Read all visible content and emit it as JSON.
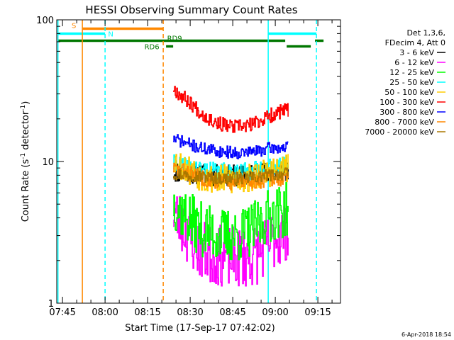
{
  "chart_data": {
    "type": "line",
    "title": "HESSI Observing Summary Count Rates",
    "xlabel": "Start Time (17-Sep-17 07:42:02)",
    "ylabel": "Count Rate (s",
    "ylabel_sup": "-1",
    "ylabel_tail": " detector",
    "ylabel_close": ")",
    "yscale": "log",
    "ylim": [
      1,
      100
    ],
    "xlim_minutes": [
      -2.03,
      97.98
    ],
    "x_ticks": [
      {
        "m": 0,
        "label": "07:45"
      },
      {
        "m": 15,
        "label": "08:00"
      },
      {
        "m": 30,
        "label": "08:15"
      },
      {
        "m": 45,
        "label": "08:30"
      },
      {
        "m": 60,
        "label": "08:45"
      },
      {
        "m": 75,
        "label": "09:00"
      },
      {
        "m": 90,
        "label": "09:15"
      }
    ],
    "y_ticks": [
      {
        "v": 1,
        "label": "1"
      },
      {
        "v": 10,
        "label": "10"
      },
      {
        "v": 100,
        "label": "100"
      }
    ],
    "legend": {
      "header": [
        "Det 1,3,6,",
        "FDecim 4, Att 0"
      ],
      "placement": "right"
    },
    "series": [
      {
        "name": "3 - 6 keV",
        "color": "#000000",
        "t0": 39,
        "t1": 79.5,
        "points": [
          [
            39,
            8.5
          ],
          [
            45,
            8.3
          ],
          [
            55,
            7.9
          ],
          [
            65,
            8.0
          ],
          [
            73,
            8.4
          ],
          [
            79.5,
            8.6
          ]
        ],
        "spread": 0.18,
        "seed": 11
      },
      {
        "name": "6 - 12 keV",
        "color": "#ff00ff",
        "t0": 39,
        "t1": 79.5,
        "points": [
          [
            39,
            4.5
          ],
          [
            43,
            3.3
          ],
          [
            47,
            2.5
          ],
          [
            52,
            2.2
          ],
          [
            60,
            2.1
          ],
          [
            66,
            2.1
          ],
          [
            71,
            2.4
          ],
          [
            75,
            2.9
          ],
          [
            79.5,
            3.3
          ]
        ],
        "spread": 0.5,
        "seed": 23
      },
      {
        "name": "12 - 25 keV",
        "color": "#00ff00",
        "t0": 39,
        "t1": 79.5,
        "points": [
          [
            39,
            5.2
          ],
          [
            43,
            4.2
          ],
          [
            48,
            3.4
          ],
          [
            55,
            3.0
          ],
          [
            62,
            3.0
          ],
          [
            68,
            3.4
          ],
          [
            73,
            4.2
          ],
          [
            79.5,
            4.6
          ]
        ],
        "spread": 0.45,
        "seed": 37
      },
      {
        "name": "25 - 50 keV",
        "color": "#00ffff",
        "t0": 39,
        "t1": 79.5,
        "points": [
          [
            39,
            9.6
          ],
          [
            45,
            9.0
          ],
          [
            55,
            8.4
          ],
          [
            65,
            8.5
          ],
          [
            73,
            9.0
          ],
          [
            79.5,
            9.4
          ]
        ],
        "spread": 0.15,
        "seed": 41
      },
      {
        "name": "50 - 100 keV",
        "color": "#ffcc00",
        "t0": 39,
        "t1": 79.5,
        "points": [
          [
            39,
            10.5
          ],
          [
            43,
            9.0
          ],
          [
            50,
            7.7
          ],
          [
            58,
            7.4
          ],
          [
            66,
            7.6
          ],
          [
            72,
            8.4
          ],
          [
            79.5,
            8.9
          ]
        ],
        "spread": 0.25,
        "seed": 53
      },
      {
        "name": "100 - 300 keV",
        "color": "#ff0000",
        "t0": 39,
        "t1": 79.5,
        "points": [
          [
            39,
            33
          ],
          [
            42,
            29
          ],
          [
            45,
            26
          ],
          [
            50,
            21
          ],
          [
            55,
            18.5
          ],
          [
            60,
            17.5
          ],
          [
            66,
            18
          ],
          [
            71,
            20
          ],
          [
            75,
            22
          ],
          [
            79.5,
            23
          ]
        ],
        "spread": 0.12,
        "seed": 67
      },
      {
        "name": "300 - 800 keV",
        "color": "#0000ff",
        "t0": 39,
        "t1": 79.5,
        "points": [
          [
            39,
            14.5
          ],
          [
            43,
            13.6
          ],
          [
            48,
            12.5
          ],
          [
            55,
            11.8
          ],
          [
            62,
            11.5
          ],
          [
            68,
            11.8
          ],
          [
            73,
            12.4
          ],
          [
            79.5,
            12.6
          ]
        ],
        "spread": 0.1,
        "seed": 71
      },
      {
        "name": "800 - 7000 keV",
        "color": "#ff8800",
        "t0": 39,
        "t1": 79.5,
        "points": [
          [
            39,
            9.0
          ],
          [
            43,
            8.5
          ],
          [
            48,
            7.8
          ],
          [
            55,
            7.2
          ],
          [
            62,
            7.0
          ],
          [
            68,
            7.2
          ],
          [
            73,
            7.6
          ],
          [
            79.5,
            7.5
          ]
        ],
        "spread": 0.13,
        "seed": 83
      },
      {
        "name": "7000 - 20000 keV",
        "color": "#aa7700",
        "t0": 39,
        "t1": 79.5,
        "points": [
          [
            39,
            8.2
          ],
          [
            45,
            8.0
          ],
          [
            55,
            7.6
          ],
          [
            65,
            7.6
          ],
          [
            73,
            8.0
          ],
          [
            79.5,
            8.2
          ]
        ],
        "spread": 0.1,
        "seed": 97
      }
    ],
    "vlines": [
      {
        "m": -1.6,
        "color": "#00ffff",
        "dash": false
      },
      {
        "m": 7.0,
        "color": "#ff8800",
        "dash": false
      },
      {
        "m": 15.0,
        "color": "#00ffff",
        "dash": true
      },
      {
        "m": 35.5,
        "color": "#ff8800",
        "dash": true
      },
      {
        "m": 72.5,
        "color": "#00ffff",
        "dash": false
      },
      {
        "m": 89.5,
        "color": "#00ffff",
        "dash": true
      }
    ],
    "flag_bars": [
      {
        "label": "S",
        "color": "#ff8800",
        "y": 40.5,
        "segments": [
          [
            7.0,
            35.5
          ]
        ],
        "label_at_m": 4.0,
        "label_dy": -1
      },
      {
        "label": "N",
        "color": "#00ffff",
        "y": 47.5,
        "segments": [
          [
            -1.6,
            15.0
          ],
          [
            72.5,
            89.5
          ]
        ],
        "label_at_m": 17.0,
        "label_dy": 4
      },
      {
        "label": "RD9",
        "color": "#007700",
        "y": 57.5,
        "segments": [
          [
            -1.6,
            78.5
          ],
          [
            89.0,
            92.0
          ]
        ],
        "label_at_m": 39.5,
        "label_dy": 0
      },
      {
        "label": "RD6",
        "color": "#007700",
        "y": 65.5,
        "segments": [
          [
            36.5,
            39.0
          ],
          [
            79.0,
            87.5
          ]
        ],
        "label_at_m": 31.5,
        "label_dy": 4
      }
    ],
    "footer": "6-Apr-2018 18:54"
  }
}
